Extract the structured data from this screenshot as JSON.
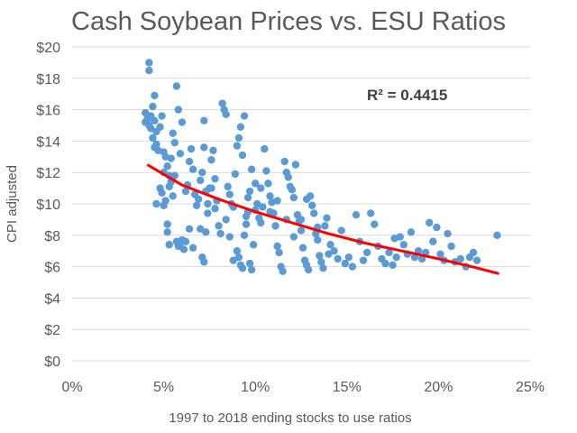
{
  "chart_data": {
    "type": "scatter",
    "title": "Cash Soybean Prices vs. ESU Ratios",
    "xlabel": "1997 to 2018 ending stocks to use ratios",
    "ylabel": "CPI adjusted",
    "xlim": [
      0,
      0.25
    ],
    "ylim": [
      0,
      20
    ],
    "xticks": [
      0,
      0.05,
      0.1,
      0.15,
      0.2,
      0.25
    ],
    "xtick_labels": [
      "0%",
      "5%",
      "10%",
      "15%",
      "20%",
      "25%"
    ],
    "yticks": [
      0,
      2,
      4,
      6,
      8,
      10,
      12,
      14,
      16,
      18,
      20
    ],
    "ytick_labels": [
      "$0",
      "$2",
      "$4",
      "$6",
      "$8",
      "$10",
      "$12",
      "$14",
      "$16",
      "$18",
      "$20"
    ],
    "grid": true,
    "annotation": "R² = 0.4415",
    "trendline": {
      "type": "power",
      "x": [
        0.041,
        0.06,
        0.08,
        0.1,
        0.12,
        0.14,
        0.16,
        0.18,
        0.2,
        0.22,
        0.233
      ],
      "y": [
        12.5,
        11.2,
        10.3,
        9.5,
        8.8,
        8.1,
        7.5,
        7.0,
        6.5,
        5.95,
        5.55
      ],
      "color": "#ff0000"
    },
    "series": [
      {
        "name": "Cash soybean prices",
        "color": "#5b9bd5",
        "points": [
          [
            0.042,
            19.0
          ],
          [
            0.042,
            18.5
          ],
          [
            0.04,
            15.8
          ],
          [
            0.041,
            15.4
          ],
          [
            0.042,
            15.0
          ],
          [
            0.043,
            15.6
          ],
          [
            0.044,
            16.2
          ],
          [
            0.045,
            16.9
          ],
          [
            0.04,
            15.2
          ],
          [
            0.043,
            14.8
          ],
          [
            0.045,
            15.3
          ],
          [
            0.046,
            14.6
          ],
          [
            0.044,
            14.2
          ],
          [
            0.046,
            13.8
          ],
          [
            0.047,
            13.4
          ],
          [
            0.045,
            13.6
          ],
          [
            0.048,
            14.9
          ],
          [
            0.049,
            15.6
          ],
          [
            0.05,
            13.3
          ],
          [
            0.051,
            13.0
          ],
          [
            0.052,
            12.4
          ],
          [
            0.05,
            12.0
          ],
          [
            0.053,
            11.8
          ],
          [
            0.054,
            12.9
          ],
          [
            0.055,
            14.5
          ],
          [
            0.056,
            13.9
          ],
          [
            0.057,
            17.5
          ],
          [
            0.058,
            16.0
          ],
          [
            0.06,
            15.2
          ],
          [
            0.059,
            13.2
          ],
          [
            0.048,
            11.0
          ],
          [
            0.049,
            10.7
          ],
          [
            0.05,
            9.9
          ],
          [
            0.051,
            10.2
          ],
          [
            0.052,
            8.7
          ],
          [
            0.052,
            8.2
          ],
          [
            0.046,
            10.0
          ],
          [
            0.053,
            11.1
          ],
          [
            0.055,
            10.5
          ],
          [
            0.056,
            11.8
          ],
          [
            0.057,
            7.6
          ],
          [
            0.058,
            7.3
          ],
          [
            0.059,
            7.5
          ],
          [
            0.06,
            7.7
          ],
          [
            0.061,
            7.1
          ],
          [
            0.062,
            10.8
          ],
          [
            0.063,
            11.2
          ],
          [
            0.064,
            12.7
          ],
          [
            0.065,
            13.5
          ],
          [
            0.066,
            12.2
          ],
          [
            0.067,
            10.6
          ],
          [
            0.068,
            9.9
          ],
          [
            0.069,
            10.3
          ],
          [
            0.07,
            11.5
          ],
          [
            0.071,
            12.0
          ],
          [
            0.072,
            13.6
          ],
          [
            0.072,
            15.3
          ],
          [
            0.073,
            10.8
          ],
          [
            0.074,
            9.4
          ],
          [
            0.075,
            11.0
          ],
          [
            0.076,
            12.8
          ],
          [
            0.077,
            13.4
          ],
          [
            0.078,
            11.6
          ],
          [
            0.079,
            10.2
          ],
          [
            0.08,
            8.6
          ],
          [
            0.081,
            8.1
          ],
          [
            0.07,
            8.4
          ],
          [
            0.071,
            6.6
          ],
          [
            0.072,
            6.3
          ],
          [
            0.073,
            8.2
          ],
          [
            0.082,
            16.4
          ],
          [
            0.083,
            16.0
          ],
          [
            0.084,
            15.7
          ],
          [
            0.085,
            11.1
          ],
          [
            0.086,
            10.6
          ],
          [
            0.087,
            10.0
          ],
          [
            0.088,
            9.8
          ],
          [
            0.089,
            11.9
          ],
          [
            0.09,
            13.7
          ],
          [
            0.091,
            14.2
          ],
          [
            0.092,
            14.9
          ],
          [
            0.093,
            13.1
          ],
          [
            0.094,
            15.6
          ],
          [
            0.095,
            9.2
          ],
          [
            0.096,
            10.4
          ],
          [
            0.097,
            10.8
          ],
          [
            0.098,
            12.2
          ],
          [
            0.09,
            7.0
          ],
          [
            0.091,
            6.6
          ],
          [
            0.092,
            6.1
          ],
          [
            0.093,
            5.9
          ],
          [
            0.094,
            8.0
          ],
          [
            0.095,
            8.7
          ],
          [
            0.096,
            9.5
          ],
          [
            0.097,
            6.2
          ],
          [
            0.098,
            5.8
          ],
          [
            0.1,
            9.6
          ],
          [
            0.101,
            10.0
          ],
          [
            0.102,
            9.1
          ],
          [
            0.103,
            8.8
          ],
          [
            0.104,
            9.8
          ],
          [
            0.105,
            13.5
          ],
          [
            0.106,
            12.1
          ],
          [
            0.107,
            11.3
          ],
          [
            0.108,
            10.5
          ],
          [
            0.109,
            10.1
          ],
          [
            0.11,
            9.4
          ],
          [
            0.111,
            8.6
          ],
          [
            0.112,
            7.3
          ],
          [
            0.113,
            6.9
          ],
          [
            0.114,
            6.0
          ],
          [
            0.115,
            5.7
          ],
          [
            0.116,
            12.7
          ],
          [
            0.117,
            12.0
          ],
          [
            0.118,
            11.7
          ],
          [
            0.119,
            11.1
          ],
          [
            0.12,
            10.9
          ],
          [
            0.121,
            10.4
          ],
          [
            0.122,
            12.5
          ],
          [
            0.123,
            9.3
          ],
          [
            0.124,
            8.9
          ],
          [
            0.125,
            8.3
          ],
          [
            0.126,
            7.2
          ],
          [
            0.127,
            6.4
          ],
          [
            0.128,
            6.1
          ],
          [
            0.129,
            5.8
          ],
          [
            0.13,
            10.5
          ],
          [
            0.131,
            9.9
          ],
          [
            0.132,
            9.4
          ],
          [
            0.133,
            8.1
          ],
          [
            0.134,
            7.7
          ],
          [
            0.135,
            6.7
          ],
          [
            0.136,
            6.3
          ],
          [
            0.137,
            5.9
          ],
          [
            0.138,
            8.6
          ],
          [
            0.139,
            9.1
          ],
          [
            0.14,
            6.8
          ],
          [
            0.141,
            7.4
          ],
          [
            0.143,
            7.0
          ],
          [
            0.145,
            6.5
          ],
          [
            0.147,
            8.3
          ],
          [
            0.149,
            6.2
          ],
          [
            0.151,
            6.6
          ],
          [
            0.153,
            6.0
          ],
          [
            0.155,
            9.3
          ],
          [
            0.157,
            7.6
          ],
          [
            0.159,
            6.4
          ],
          [
            0.161,
            6.9
          ],
          [
            0.163,
            9.4
          ],
          [
            0.165,
            8.7
          ],
          [
            0.167,
            7.3
          ],
          [
            0.169,
            6.5
          ],
          [
            0.171,
            6.2
          ],
          [
            0.173,
            6.9
          ],
          [
            0.175,
            6.1
          ],
          [
            0.177,
            6.6
          ],
          [
            0.179,
            7.9
          ],
          [
            0.181,
            7.4
          ],
          [
            0.183,
            6.8
          ],
          [
            0.185,
            8.2
          ],
          [
            0.187,
            6.6
          ],
          [
            0.189,
            7.0
          ],
          [
            0.191,
            6.5
          ],
          [
            0.193,
            6.9
          ],
          [
            0.195,
            8.8
          ],
          [
            0.197,
            7.6
          ],
          [
            0.199,
            8.5
          ],
          [
            0.201,
            6.8
          ],
          [
            0.203,
            6.4
          ],
          [
            0.205,
            8.1
          ],
          [
            0.207,
            7.3
          ],
          [
            0.209,
            6.3
          ],
          [
            0.212,
            6.5
          ],
          [
            0.215,
            6.0
          ],
          [
            0.217,
            6.6
          ],
          [
            0.219,
            6.9
          ],
          [
            0.221,
            6.4
          ],
          [
            0.232,
            8.0
          ],
          [
            0.176,
            7.8
          ],
          [
            0.088,
            6.4
          ],
          [
            0.086,
            7.9
          ],
          [
            0.084,
            9.0
          ],
          [
            0.066,
            7.2
          ],
          [
            0.064,
            8.4
          ],
          [
            0.062,
            7.6
          ],
          [
            0.074,
            10.0
          ],
          [
            0.076,
            11.0
          ],
          [
            0.078,
            9.7
          ],
          [
            0.1,
            11.3
          ],
          [
            0.103,
            11.0
          ],
          [
            0.112,
            10.2
          ],
          [
            0.117,
            9.0
          ],
          [
            0.121,
            7.9
          ],
          [
            0.125,
            9.0
          ],
          [
            0.134,
            8.5
          ],
          [
            0.128,
            10.3
          ],
          [
            0.108,
            9.5
          ],
          [
            0.099,
            7.4
          ],
          [
            0.053,
            7.4
          ],
          [
            0.054,
            11.4
          ]
        ]
      }
    ]
  }
}
